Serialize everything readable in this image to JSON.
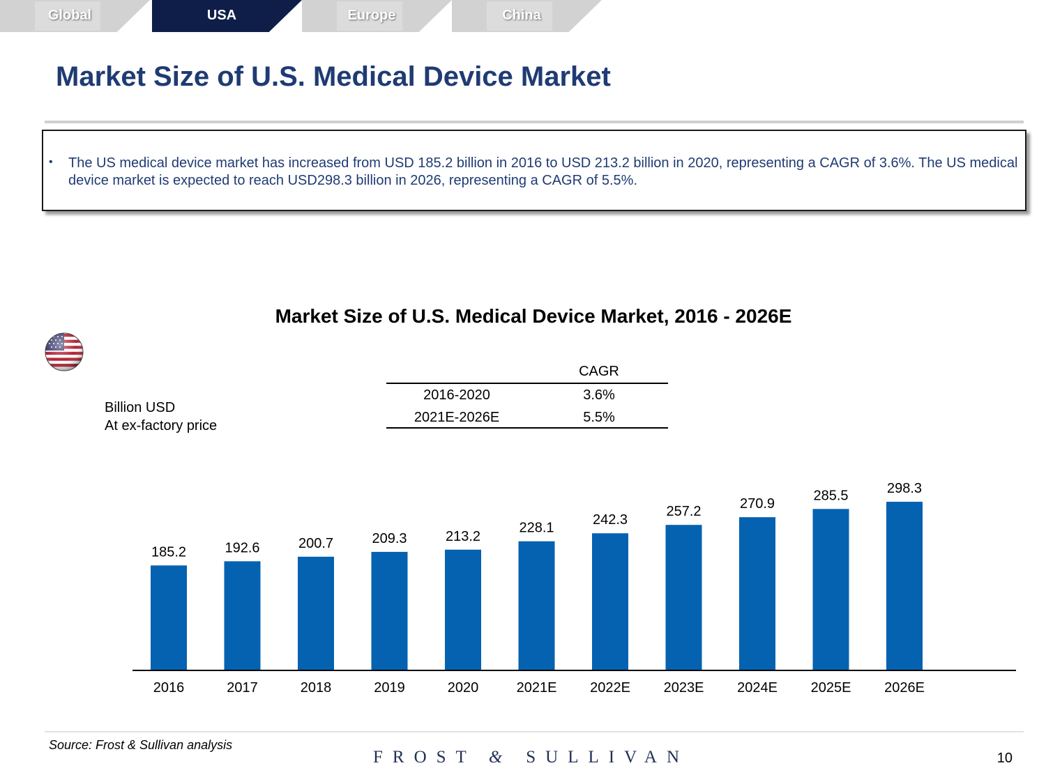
{
  "tabs": [
    {
      "label": "Global",
      "active": false
    },
    {
      "label": "USA",
      "active": true
    },
    {
      "label": "Europe",
      "active": false
    },
    {
      "label": "China",
      "active": false
    }
  ],
  "page_title": "Market Size of U.S. Medical Device Market",
  "bullet": "The US medical device market has increased from USD 185.2 billion in 2016 to USD 213.2 billion in 2020, representing a CAGR of 3.6%. The US medical device market is expected to reach USD298.3 billion in 2026, representing a CAGR of 5.5%.",
  "units": {
    "line1": "Billion USD",
    "line2": "At ex-factory price"
  },
  "cagr_table": {
    "header": "CAGR",
    "rows": [
      {
        "period": "2016-2020",
        "rate": "3.6%"
      },
      {
        "period": "2021E-2026E",
        "rate": "5.5%"
      }
    ]
  },
  "chart_data": {
    "type": "bar",
    "title": "Market Size of U.S. Medical Device Market, 2016 - 2026E",
    "categories": [
      "2016",
      "2017",
      "2018",
      "2019",
      "2020",
      "2021E",
      "2022E",
      "2023E",
      "2024E",
      "2025E",
      "2026E"
    ],
    "values": [
      185.2,
      192.6,
      200.7,
      209.3,
      213.2,
      228.1,
      242.3,
      257.2,
      270.9,
      285.5,
      298.3
    ],
    "labels": [
      "185.2",
      "192.6",
      "200.7",
      "209.3",
      "213.2",
      "228.1",
      "242.3",
      "257.2",
      "270.9",
      "285.5",
      "298.3"
    ],
    "ylabel": "Billion USD",
    "ylim": [
      0,
      330
    ],
    "grid": false,
    "bar_color": "#0562b0"
  },
  "footer": {
    "source": "Source: Frost & Sullivan analysis",
    "logo_left": "FROST",
    "logo_amp": "&",
    "logo_right": "SULLIVAN",
    "page_number": "10"
  },
  "colors": {
    "title": "#1f3b73",
    "active_tab": "#0e1e48",
    "bar": "#0562b0"
  }
}
